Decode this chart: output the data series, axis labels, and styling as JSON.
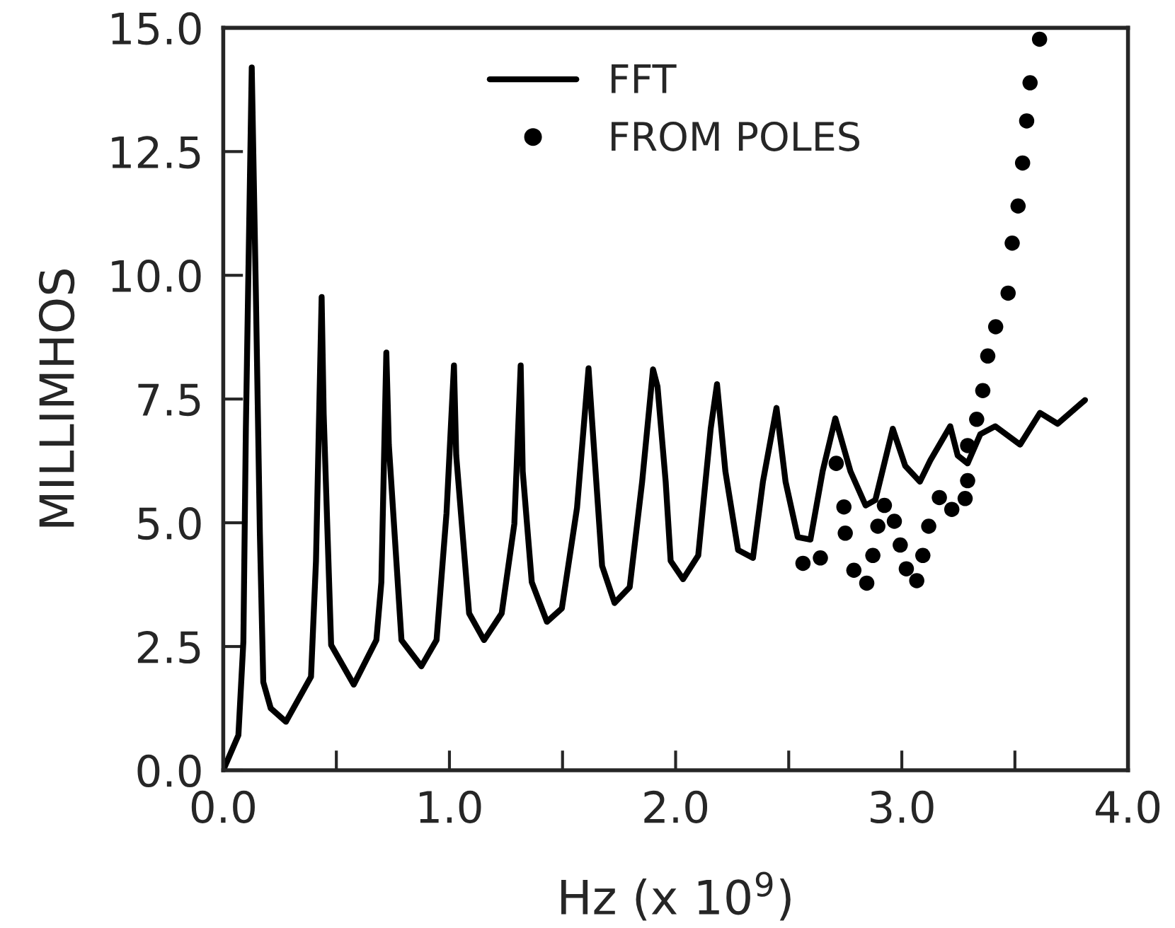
{
  "chart_data": {
    "type": "line",
    "xlabel": "Hz (x 10$^{9}$)",
    "ylabel": "MILLIMHOS",
    "xlim": [
      0,
      4
    ],
    "ylim": [
      0,
      15
    ],
    "xticks": [
      {
        "value": 0,
        "label": "0.0"
      },
      {
        "value": 0.5,
        "label": null
      },
      {
        "value": 1,
        "label": "1.0"
      },
      {
        "value": 1.5,
        "label": null
      },
      {
        "value": 2,
        "label": "2.0"
      },
      {
        "value": 2.5,
        "label": null
      },
      {
        "value": 3,
        "label": "3.0"
      },
      {
        "value": 3.5,
        "label": null
      },
      {
        "value": 4,
        "label": "4.0"
      }
    ],
    "yticks": [
      {
        "value": 0,
        "label": "0.0"
      },
      {
        "value": 2.5,
        "label": "2.5"
      },
      {
        "value": 5,
        "label": "5.0"
      },
      {
        "value": 7.5,
        "label": "7.5"
      },
      {
        "value": 10,
        "label": "10.0"
      },
      {
        "value": 12.5,
        "label": "12.5"
      },
      {
        "value": 15,
        "label": "15.0"
      }
    ],
    "grid": false,
    "legend": "top",
    "series": [
      {
        "name": "FFT",
        "color": "#000000",
        "marker": "none",
        "line_style": "solid",
        "x": [
          0,
          0.067,
          0.089,
          0.1,
          0.126,
          0.144,
          0.162,
          0.177,
          0.21,
          0.277,
          0.388,
          0.41,
          0.435,
          0.444,
          0.477,
          0.577,
          0.677,
          0.699,
          0.721,
          0.732,
          0.788,
          0.876,
          0.943,
          0.987,
          1.02,
          1.03,
          1.087,
          1.153,
          1.231,
          1.287,
          1.315,
          1.324,
          1.364,
          1.431,
          1.497,
          1.564,
          1.615,
          1.63,
          1.675,
          1.73,
          1.797,
          1.852,
          1.9,
          1.92,
          1.956,
          1.978,
          2.033,
          2.1,
          2.155,
          2.183,
          2.22,
          2.276,
          2.342,
          2.386,
          2.446,
          2.486,
          2.54,
          2.596,
          2.65,
          2.706,
          2.773,
          2.84,
          2.883,
          2.96,
          3.015,
          3.08,
          3.126,
          3.214,
          3.247,
          3.291,
          3.347,
          3.413,
          3.523,
          3.611,
          3.689,
          3.81
        ],
        "values": [
          0,
          0.71,
          2.6,
          6.9,
          14.2,
          9.7,
          4.77,
          1.78,
          1.25,
          0.98,
          1.89,
          4.23,
          9.56,
          7.2,
          2.53,
          1.73,
          2.63,
          3.8,
          8.44,
          6.58,
          2.63,
          2.1,
          2.63,
          5.19,
          8.18,
          6.36,
          3.17,
          2.63,
          3.17,
          4.98,
          8.18,
          6.04,
          3.8,
          3.0,
          3.27,
          5.3,
          8.12,
          7.1,
          4.13,
          3.38,
          3.7,
          5.83,
          8.1,
          7.75,
          5.83,
          4.23,
          3.86,
          4.34,
          6.9,
          7.8,
          6.04,
          4.45,
          4.29,
          5.83,
          7.32,
          5.83,
          4.71,
          4.66,
          6.04,
          7.11,
          6.04,
          5.35,
          5.46,
          6.9,
          6.15,
          5.83,
          6.26,
          6.95,
          6.36,
          6.2,
          6.79,
          6.95,
          6.58,
          7.22,
          7.0,
          7.48
        ]
      },
      {
        "name": "FROM POLES",
        "type": "scatter",
        "color": "#000000",
        "marker": "circle",
        "x": [
          2.563,
          2.64,
          2.71,
          2.744,
          2.75,
          2.788,
          2.845,
          2.872,
          2.894,
          2.923,
          2.967,
          2.993,
          3.02,
          3.066,
          3.093,
          3.119,
          3.166,
          3.221,
          3.28,
          3.291,
          3.291,
          3.331,
          3.358,
          3.38,
          3.415,
          3.47,
          3.488,
          3.514,
          3.534,
          3.552,
          3.567,
          3.609
        ],
        "values": [
          4.18,
          4.29,
          6.2,
          5.32,
          4.79,
          4.04,
          3.78,
          4.34,
          4.93,
          5.35,
          5.03,
          4.55,
          4.07,
          3.83,
          4.34,
          4.93,
          5.51,
          5.27,
          5.49,
          5.85,
          6.56,
          7.09,
          7.67,
          8.37,
          8.96,
          9.64,
          10.65,
          11.4,
          12.27,
          13.12,
          13.89,
          14.77
        ]
      }
    ]
  }
}
